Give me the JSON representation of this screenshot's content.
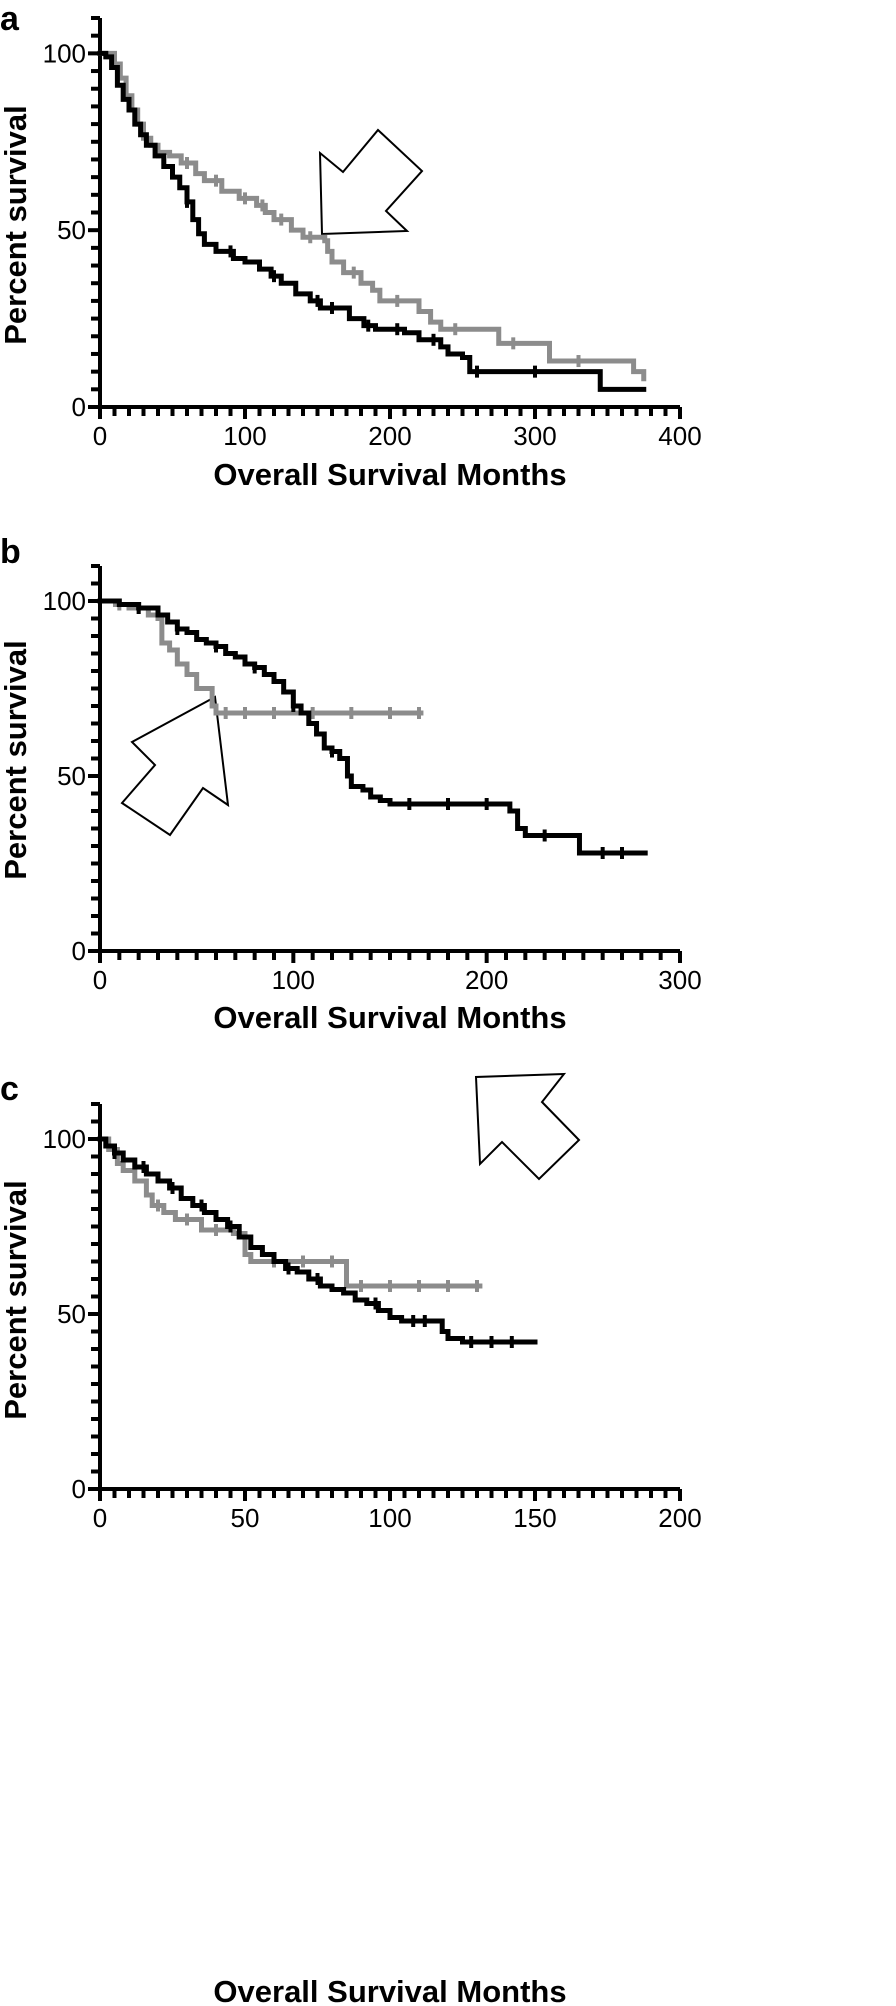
{
  "figure": {
    "colors": {
      "series_black": "#000000",
      "series_gray": "#8c8c8c",
      "axis": "#000000",
      "arrow_fill": "#ffffff"
    }
  },
  "chart_data": [
    {
      "panel": "a",
      "type": "line",
      "subtype": "kaplan-meier step",
      "xlabel": "Overall Survival Months",
      "ylabel": "Percent survival",
      "xlim": [
        0,
        400
      ],
      "ylim": [
        0,
        110
      ],
      "x_ticks": [
        "0",
        "100",
        "200",
        "300",
        "400"
      ],
      "y_ticks": [
        "0",
        "50",
        "100"
      ],
      "arrow": {
        "points_to": [
          152,
          48
        ],
        "direction": "down-left"
      },
      "series": [
        {
          "name": "black curve",
          "color": "#000000",
          "steps": [
            [
              0,
              100
            ],
            [
              4,
              99
            ],
            [
              8,
              96
            ],
            [
              12,
              91
            ],
            [
              16,
              87
            ],
            [
              20,
              84
            ],
            [
              24,
              80
            ],
            [
              28,
              77
            ],
            [
              32,
              74
            ],
            [
              38,
              71
            ],
            [
              44,
              68
            ],
            [
              50,
              65
            ],
            [
              55,
              62
            ],
            [
              60,
              58
            ],
            [
              64,
              53
            ],
            [
              68,
              49
            ],
            [
              72,
              46
            ],
            [
              80,
              44
            ],
            [
              92,
              42
            ],
            [
              100,
              41
            ],
            [
              110,
              39
            ],
            [
              118,
              37
            ],
            [
              125,
              35
            ],
            [
              135,
              32
            ],
            [
              145,
              30
            ],
            [
              152,
              28
            ],
            [
              168,
              28
            ],
            [
              172,
              25
            ],
            [
              182,
              23
            ],
            [
              190,
              22
            ],
            [
              210,
              21
            ],
            [
              220,
              19
            ],
            [
              235,
              17
            ],
            [
              240,
              15
            ],
            [
              250,
              14
            ],
            [
              255,
              10
            ],
            [
              330,
              10
            ],
            [
              345,
              5
            ],
            [
              375,
              5
            ]
          ],
          "censor_x": [
            60,
            90,
            120,
            150,
            160,
            185,
            205,
            230,
            260,
            300
          ]
        },
        {
          "name": "gray curve",
          "color": "#8c8c8c",
          "steps": [
            [
              0,
              100
            ],
            [
              5,
              100
            ],
            [
              10,
              97
            ],
            [
              14,
              93
            ],
            [
              18,
              88
            ],
            [
              22,
              84
            ],
            [
              26,
              80
            ],
            [
              30,
              76
            ],
            [
              35,
              74
            ],
            [
              40,
              72
            ],
            [
              48,
              71
            ],
            [
              56,
              69
            ],
            [
              66,
              66
            ],
            [
              72,
              64
            ],
            [
              84,
              61
            ],
            [
              96,
              59
            ],
            [
              108,
              57
            ],
            [
              114,
              55
            ],
            [
              120,
              53
            ],
            [
              132,
              50
            ],
            [
              140,
              48
            ],
            [
              155,
              47
            ],
            [
              157,
              44
            ],
            [
              160,
              41
            ],
            [
              168,
              38
            ],
            [
              180,
              35
            ],
            [
              188,
              33
            ],
            [
              193,
              30
            ],
            [
              215,
              30
            ],
            [
              220,
              27
            ],
            [
              228,
              24
            ],
            [
              235,
              22
            ],
            [
              260,
              22
            ],
            [
              275,
              18
            ],
            [
              295,
              18
            ],
            [
              310,
              13
            ],
            [
              355,
              13
            ],
            [
              368,
              10
            ],
            [
              375,
              8
            ]
          ],
          "censor_x": [
            40,
            60,
            80,
            100,
            112,
            125,
            145,
            175,
            205,
            245,
            285,
            330
          ]
        }
      ]
    },
    {
      "panel": "b",
      "type": "line",
      "subtype": "kaplan-meier step",
      "xlabel": "Overall Survival Months",
      "ylabel": "Percent survival",
      "xlim": [
        0,
        300
      ],
      "ylim": [
        0,
        110
      ],
      "x_ticks": [
        "0",
        "100",
        "200",
        "300"
      ],
      "y_ticks": [
        "0",
        "50",
        "100"
      ],
      "arrow": {
        "points_to": [
          58,
          68
        ],
        "direction": "up-right"
      },
      "series": [
        {
          "name": "black curve",
          "color": "#000000",
          "steps": [
            [
              0,
              100
            ],
            [
              10,
              99
            ],
            [
              20,
              98
            ],
            [
              30,
              96
            ],
            [
              35,
              94
            ],
            [
              40,
              92
            ],
            [
              45,
              91
            ],
            [
              50,
              89
            ],
            [
              55,
              88
            ],
            [
              60,
              87
            ],
            [
              65,
              85
            ],
            [
              70,
              84
            ],
            [
              75,
              82
            ],
            [
              80,
              81
            ],
            [
              85,
              79
            ],
            [
              90,
              77
            ],
            [
              95,
              74
            ],
            [
              100,
              70
            ],
            [
              104,
              68
            ],
            [
              108,
              65
            ],
            [
              112,
              62
            ],
            [
              116,
              58
            ],
            [
              120,
              57
            ],
            [
              124,
              55
            ],
            [
              128,
              50
            ],
            [
              130,
              47
            ],
            [
              136,
              46
            ],
            [
              140,
              44
            ],
            [
              145,
              43
            ],
            [
              150,
              42
            ],
            [
              208,
              42
            ],
            [
              212,
              40
            ],
            [
              216,
              35
            ],
            [
              220,
              33
            ],
            [
              245,
              33
            ],
            [
              248,
              28
            ],
            [
              282,
              28
            ]
          ],
          "censor_x": [
            20,
            40,
            60,
            80,
            100,
            120,
            160,
            180,
            200,
            230,
            260,
            270
          ]
        },
        {
          "name": "gray curve",
          "color": "#8c8c8c",
          "steps": [
            [
              0,
              100
            ],
            [
              8,
              99
            ],
            [
              15,
              98
            ],
            [
              25,
              96
            ],
            [
              30,
              95
            ],
            [
              32,
              88
            ],
            [
              36,
              86
            ],
            [
              40,
              82
            ],
            [
              45,
              79
            ],
            [
              50,
              75
            ],
            [
              58,
              70
            ],
            [
              60,
              68
            ],
            [
              166,
              68
            ]
          ],
          "censor_x": [
            10,
            20,
            65,
            75,
            90,
            110,
            130,
            150,
            165
          ]
        }
      ]
    },
    {
      "panel": "c",
      "type": "line",
      "subtype": "kaplan-meier step",
      "xlabel": "Overall Survival Months",
      "ylabel": "Percent survival",
      "xlim": [
        0,
        200
      ],
      "ylim": [
        0,
        110
      ],
      "x_ticks": [
        "0",
        "50",
        "100",
        "150",
        "200"
      ],
      "y_ticks": [
        "0",
        "50",
        "100"
      ],
      "arrow": {
        "points_to": [
          132,
          59
        ],
        "direction": "down-left"
      },
      "series": [
        {
          "name": "black curve",
          "color": "#000000",
          "steps": [
            [
              0,
              100
            ],
            [
              2,
              98
            ],
            [
              5,
              96
            ],
            [
              8,
              94
            ],
            [
              12,
              92
            ],
            [
              16,
              90
            ],
            [
              20,
              88
            ],
            [
              24,
              86
            ],
            [
              28,
              83
            ],
            [
              32,
              81
            ],
            [
              36,
              79
            ],
            [
              40,
              77
            ],
            [
              44,
              75
            ],
            [
              48,
              72
            ],
            [
              52,
              69
            ],
            [
              56,
              67
            ],
            [
              60,
              65
            ],
            [
              64,
              63
            ],
            [
              68,
              62
            ],
            [
              72,
              60
            ],
            [
              76,
              58
            ],
            [
              80,
              57
            ],
            [
              84,
              56
            ],
            [
              88,
              54
            ],
            [
              92,
              53
            ],
            [
              96,
              51
            ],
            [
              100,
              49
            ],
            [
              104,
              48
            ],
            [
              116,
              48
            ],
            [
              118,
              45
            ],
            [
              120,
              43
            ],
            [
              125,
              42
            ],
            [
              150,
              42
            ]
          ],
          "censor_x": [
            5,
            15,
            25,
            35,
            45,
            65,
            75,
            95,
            108,
            112,
            128,
            135,
            142
          ]
        },
        {
          "name": "gray curve",
          "color": "#8c8c8c",
          "steps": [
            [
              0,
              100
            ],
            [
              3,
              97
            ],
            [
              6,
              93
            ],
            [
              8,
              91
            ],
            [
              12,
              88
            ],
            [
              16,
              84
            ],
            [
              18,
              81
            ],
            [
              22,
              79
            ],
            [
              26,
              77
            ],
            [
              35,
              74
            ],
            [
              46,
              73
            ],
            [
              50,
              67
            ],
            [
              52,
              65
            ],
            [
              84,
              65
            ],
            [
              85,
              58
            ],
            [
              131,
              58
            ]
          ],
          "censor_x": [
            20,
            30,
            40,
            60,
            70,
            80,
            90,
            100,
            110,
            120,
            130
          ]
        }
      ]
    }
  ]
}
